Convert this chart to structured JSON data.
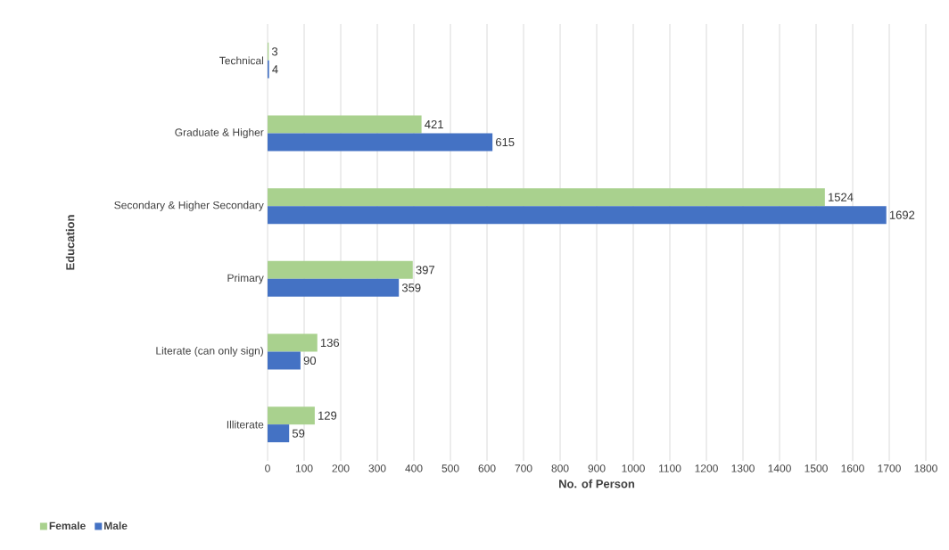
{
  "chart_data": {
    "type": "bar",
    "orientation": "horizontal",
    "categories": [
      "Technical",
      "Graduate & Higher",
      "Secondary & Higher Secondary",
      "Primary",
      "Literate (can only sign)",
      "Illiterate"
    ],
    "series": [
      {
        "name": "Female",
        "color": "#a9d18e",
        "values": [
          3,
          421,
          1524,
          397,
          136,
          129
        ]
      },
      {
        "name": "Male",
        "color": "#4472c4",
        "values": [
          4,
          615,
          1692,
          359,
          90,
          59
        ]
      }
    ],
    "xlabel": "No. of Person",
    "ylabel": "Education",
    "xlim": [
      0,
      1800
    ],
    "xticks": [
      0,
      100,
      200,
      300,
      400,
      500,
      600,
      700,
      800,
      900,
      1000,
      1100,
      1200,
      1300,
      1400,
      1500,
      1600,
      1700,
      1800
    ],
    "grid": "x",
    "legend": "bottom left",
    "data_labels": true
  }
}
